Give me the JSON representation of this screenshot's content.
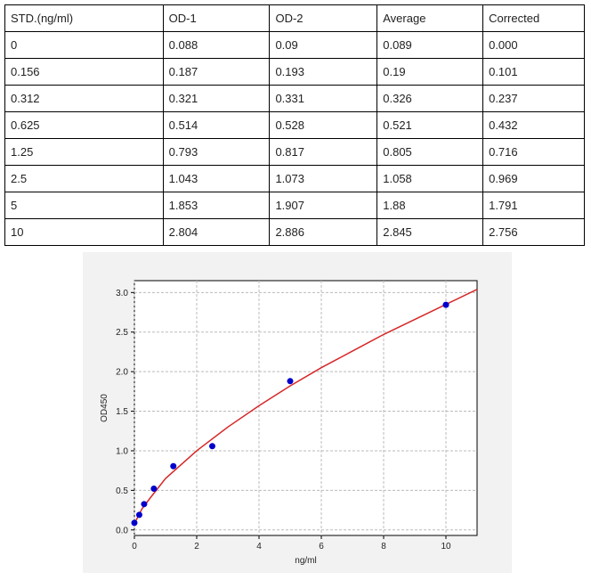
{
  "table": {
    "header": [
      "STD.(ng/ml)",
      "OD-1",
      "OD-2",
      "Average",
      "Corrected"
    ],
    "rows": [
      [
        "0",
        "0.088",
        "0.09",
        "0.089",
        "0.000"
      ],
      [
        "0.156",
        "0.187",
        "0.193",
        "0.19",
        "0.101"
      ],
      [
        "0.312",
        "0.321",
        "0.331",
        "0.326",
        "0.237"
      ],
      [
        "0.625",
        "0.514",
        "0.528",
        "0.521",
        "0.432"
      ],
      [
        "1.25",
        "0.793",
        "0.817",
        "0.805",
        "0.716"
      ],
      [
        "2.5",
        "1.043",
        "1.073",
        "1.058",
        "0.969"
      ],
      [
        "5",
        "1.853",
        "1.907",
        "1.88",
        "1.791"
      ],
      [
        "10",
        "2.804",
        "2.886",
        "2.845",
        "2.756"
      ]
    ]
  },
  "chart_data": {
    "type": "scatter",
    "xlabel": "ng/ml",
    "ylabel": "OD450",
    "series": [
      {
        "name": "Average",
        "color": "#0000cc",
        "x": [
          0,
          0.156,
          0.312,
          0.625,
          1.25,
          2.5,
          5,
          10
        ],
        "values": [
          0.089,
          0.19,
          0.326,
          0.521,
          0.805,
          1.058,
          1.88,
          2.845
        ]
      }
    ],
    "fit": {
      "color": "#d62728",
      "x": [
        0,
        0.25,
        0.5,
        1,
        2,
        3,
        4,
        5,
        6,
        7,
        8,
        9,
        10,
        11
      ],
      "values": [
        0.08,
        0.27,
        0.4,
        0.65,
        1.0,
        1.3,
        1.57,
        1.82,
        2.05,
        2.26,
        2.47,
        2.66,
        2.85,
        3.04
      ]
    },
    "xlim": [
      0,
      11
    ],
    "ylim": [
      -0.07,
      3.15
    ],
    "xticks": [
      0,
      2,
      4,
      6,
      8,
      10
    ],
    "yticks": [
      {
        "value": 0,
        "label": "0.0"
      },
      {
        "value": 0.5,
        "label": "0.5"
      },
      {
        "value": 1,
        "label": "1.0"
      },
      {
        "value": 1.5,
        "label": "1.5"
      },
      {
        "value": 2,
        "label": "2.0"
      },
      {
        "value": 2.5,
        "label": "2.5"
      },
      {
        "value": 3,
        "label": "3.0"
      }
    ],
    "grid": true
  }
}
